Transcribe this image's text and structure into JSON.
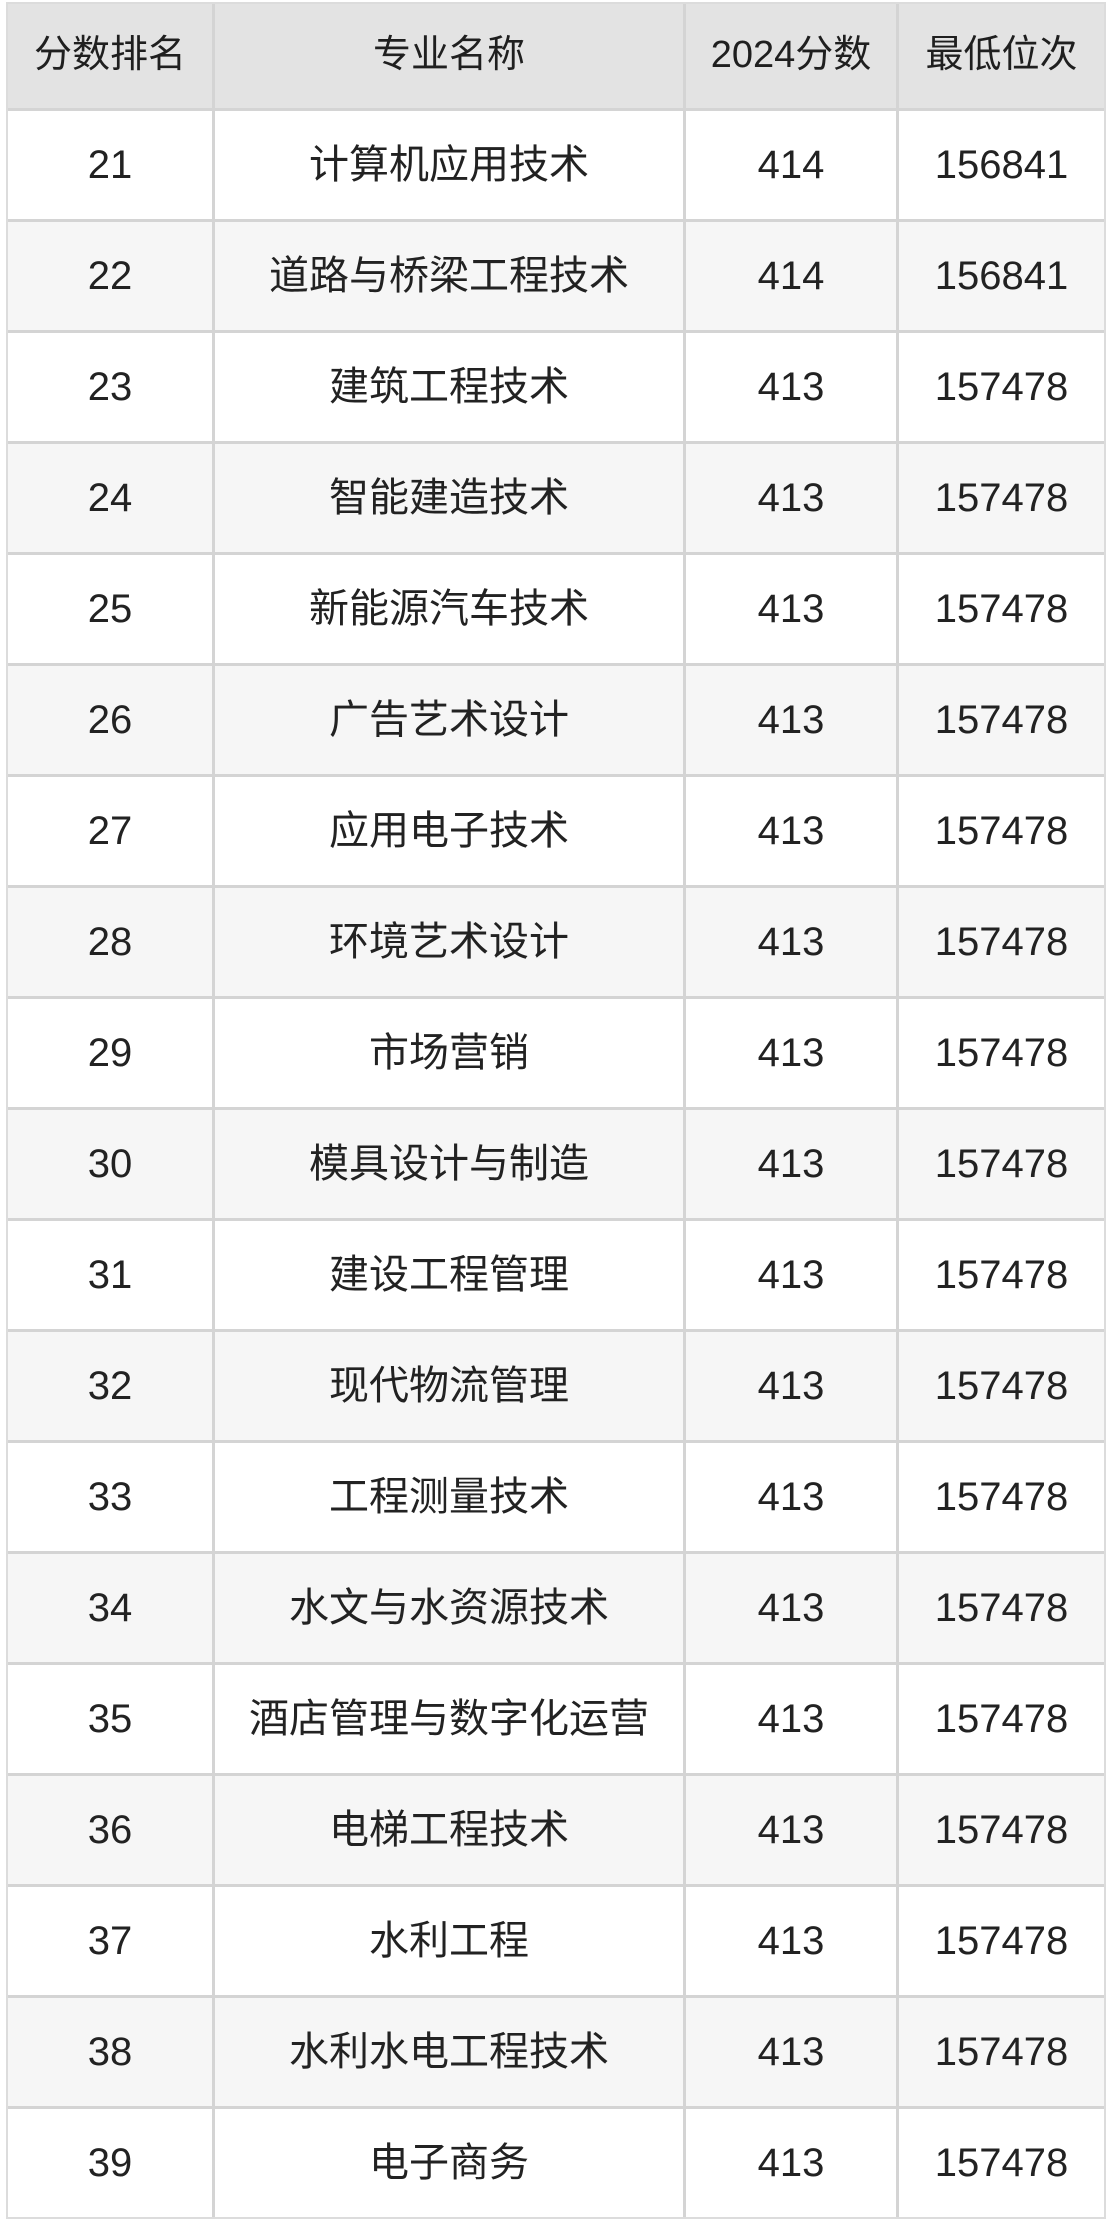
{
  "chart_data": {
    "type": "table",
    "title": "",
    "columns": [
      "分数排名",
      "专业名称",
      "2024分数",
      "最低位次"
    ],
    "rows": [
      [
        "21",
        "计算机应用技术",
        "414",
        "156841"
      ],
      [
        "22",
        "道路与桥梁工程技术",
        "414",
        "156841"
      ],
      [
        "23",
        "建筑工程技术",
        "413",
        "157478"
      ],
      [
        "24",
        "智能建造技术",
        "413",
        "157478"
      ],
      [
        "25",
        "新能源汽车技术",
        "413",
        "157478"
      ],
      [
        "26",
        "广告艺术设计",
        "413",
        "157478"
      ],
      [
        "27",
        "应用电子技术",
        "413",
        "157478"
      ],
      [
        "28",
        "环境艺术设计",
        "413",
        "157478"
      ],
      [
        "29",
        "市场营销",
        "413",
        "157478"
      ],
      [
        "30",
        "模具设计与制造",
        "413",
        "157478"
      ],
      [
        "31",
        "建设工程管理",
        "413",
        "157478"
      ],
      [
        "32",
        "现代物流管理",
        "413",
        "157478"
      ],
      [
        "33",
        "工程测量技术",
        "413",
        "157478"
      ],
      [
        "34",
        "水文与水资源技术",
        "413",
        "157478"
      ],
      [
        "35",
        "酒店管理与数字化运营",
        "413",
        "157478"
      ],
      [
        "36",
        "电梯工程技术",
        "413",
        "157478"
      ],
      [
        "37",
        "水利工程",
        "413",
        "157478"
      ],
      [
        "38",
        "水利水电工程技术",
        "413",
        "157478"
      ],
      [
        "39",
        "电子商务",
        "413",
        "157478"
      ]
    ],
    "layout": {
      "header_background": "#e3e3e3",
      "row_background": "#ffffff",
      "row_alt_background": "#f6f6f6",
      "gridline_color": "#d4d4d4",
      "text_color": "#222222",
      "alternating_rows": true
    }
  }
}
